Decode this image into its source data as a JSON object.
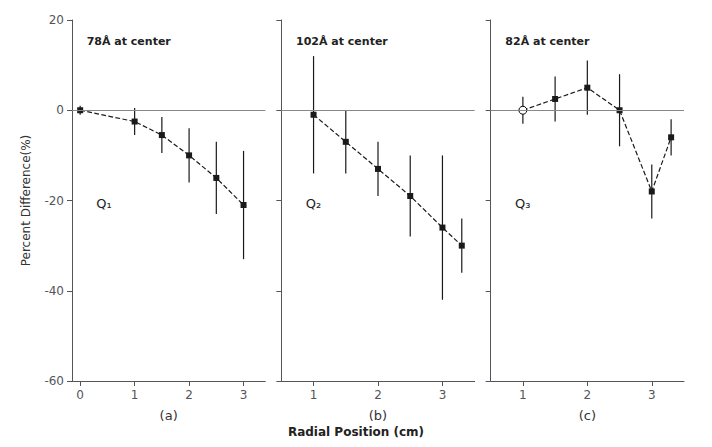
{
  "chart_data": [
    {
      "type": "line",
      "title": "(a)",
      "ylabel": "Percent Difference(%)",
      "annotations": [
        "78Å at center",
        "Q₁"
      ],
      "x": [
        0.0,
        1.0,
        1.5,
        2.0,
        2.5,
        3.0
      ],
      "values": [
        0.0,
        -2.5,
        -5.5,
        -10.0,
        -15.0,
        -21.0
      ],
      "yerr": [
        1.0,
        3.0,
        4.0,
        6.0,
        8.0,
        12.0
      ],
      "ref_line": 0,
      "color": "#1a1a1a",
      "marker": "square",
      "line_style": "dashed",
      "xlim": [
        -0.15,
        3.4
      ],
      "xticks": [
        0,
        1,
        2,
        3
      ],
      "ylim": [
        -60,
        20
      ],
      "yticks": [
        -60,
        -40,
        -20,
        0,
        20
      ],
      "grid": false
    },
    {
      "type": "line",
      "title": "(b)",
      "xlabel": "Radial Position (cm)",
      "annotations": [
        "102Å at center",
        "Q₂"
      ],
      "x": [
        1.0,
        1.5,
        2.0,
        2.5,
        3.0,
        3.3
      ],
      "values": [
        -1.0,
        -7.0,
        -13.0,
        -19.0,
        -26.0,
        -30.0
      ],
      "yerr": [
        13.0,
        7.0,
        6.0,
        9.0,
        16.0,
        6.0
      ],
      "ref_line": 0,
      "color": "#1a1a1a",
      "marker": "square",
      "line_style": "dashed",
      "xlim": [
        0.5,
        3.5
      ],
      "xticks": [
        1,
        2,
        3
      ],
      "ylim": [
        -60,
        20
      ],
      "yticks": [
        -60,
        -40,
        -20,
        0,
        20
      ],
      "grid": false,
      "tick_labels": "x"
    },
    {
      "type": "line",
      "title": "(c)",
      "annotations": [
        "82Å at center",
        "Q₃"
      ],
      "x": [
        1.0,
        1.5,
        2.0,
        2.5,
        3.0,
        3.3
      ],
      "values": [
        0.0,
        2.5,
        5.0,
        0.0,
        -18.0,
        -6.0
      ],
      "yerr": [
        3.0,
        5.0,
        6.0,
        8.0,
        6.0,
        4.0
      ],
      "ref_line": 0,
      "color": "#1a1a1a",
      "markers": [
        "open circle",
        "square",
        "square",
        "square",
        "square",
        "square"
      ],
      "line_style": "dashed",
      "xlim": [
        0.5,
        3.5
      ],
      "xticks": [
        1,
        2,
        3
      ],
      "ylim": [
        -60,
        20
      ],
      "yticks": [
        -60,
        -40,
        -20,
        0,
        20
      ],
      "grid": false,
      "tick_labels": "x"
    }
  ]
}
